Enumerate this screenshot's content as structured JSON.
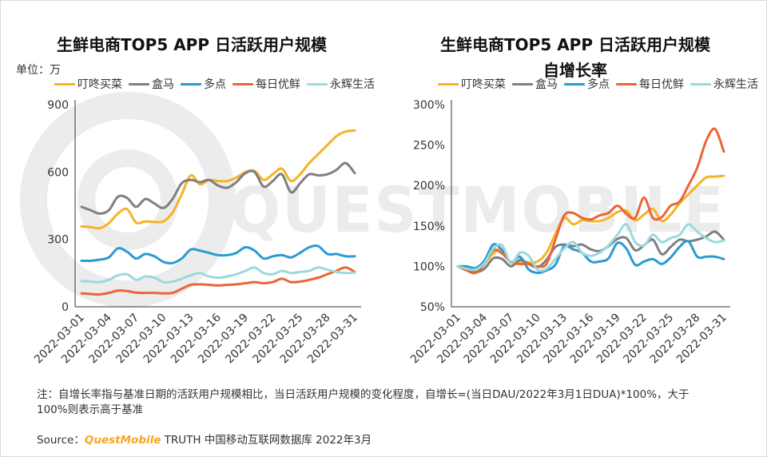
{
  "colors": {
    "dingdong": "#F5B324",
    "hema": "#7F7F7F",
    "duodian": "#2A9BD1",
    "meiri": "#EA6537",
    "yonghui": "#9AD9DC",
    "axis": "#333333",
    "text": "#333333",
    "brand": "#F5A623"
  },
  "watermark": {
    "text": "QUESTMOBILE"
  },
  "left": {
    "title": "生鲜电商TOP5 APP 日活跃用户规模",
    "unit": "单位：万"
  },
  "right": {
    "title_line1": "生鲜电商TOP5 APP 日活跃用户规模",
    "title_line2": "自增长率"
  },
  "note": "注：自增长率指与基准日期的活跃用户规模相比，当日活跃用户规模的变化程度，自增长=(当日DAU/2022年3月1日DUA)*100%，大于100%则表示高于基准",
  "source": {
    "prefix": "Source：",
    "brand": "QuestMobile",
    "suffix": " TRUTH 中国移动互联网数据库 2022年3月"
  },
  "chart_data": [
    {
      "type": "line",
      "title": "生鲜电商TOP5 APP 日活跃用户规模",
      "ylabel": "单位：万",
      "ylim": [
        0,
        900
      ],
      "yticks": [
        0,
        300,
        600,
        900
      ],
      "ytick_labels": [
        "0",
        "300",
        "600",
        "900"
      ],
      "xtick_labels": [
        "2022-03-01",
        "2022-03-04",
        "2022-03-07",
        "2022-03-10",
        "2022-03-13",
        "2022-03-16",
        "2022-03-19",
        "2022-03-22",
        "2022-03-25",
        "2022-03-28",
        "2022-03-31"
      ],
      "legend_position": "top",
      "grid": false,
      "series": [
        {
          "name": "叮咚买菜",
          "color_key": "dingdong",
          "values": [
            358,
            355,
            350,
            372,
            415,
            435,
            375,
            380,
            378,
            380,
            420,
            500,
            585,
            545,
            565,
            560,
            560,
            575,
            600,
            605,
            565,
            590,
            615,
            560,
            590,
            640,
            680,
            720,
            760,
            780,
            785
          ]
        },
        {
          "name": "盒马",
          "color_key": "hema",
          "values": [
            445,
            430,
            415,
            430,
            490,
            485,
            445,
            480,
            460,
            440,
            480,
            550,
            565,
            555,
            565,
            540,
            530,
            555,
            595,
            600,
            535,
            560,
            590,
            510,
            550,
            590,
            585,
            590,
            610,
            640,
            595
          ]
        },
        {
          "name": "多点",
          "color_key": "duodian",
          "values": [
            205,
            205,
            210,
            220,
            260,
            245,
            215,
            235,
            225,
            200,
            195,
            215,
            255,
            250,
            240,
            230,
            230,
            240,
            265,
            250,
            215,
            225,
            230,
            220,
            240,
            265,
            270,
            235,
            235,
            225,
            225
          ]
        },
        {
          "name": "每日优鲜",
          "color_key": "meiri",
          "values": [
            60,
            57,
            55,
            62,
            72,
            70,
            63,
            62,
            62,
            60,
            62,
            80,
            98,
            100,
            98,
            95,
            98,
            100,
            105,
            110,
            105,
            110,
            125,
            110,
            112,
            120,
            130,
            145,
            160,
            175,
            155
          ]
        },
        {
          "name": "永辉生活",
          "color_key": "yonghui",
          "values": [
            115,
            112,
            110,
            120,
            140,
            145,
            120,
            135,
            130,
            110,
            112,
            125,
            140,
            150,
            135,
            130,
            135,
            145,
            160,
            175,
            150,
            145,
            160,
            150,
            155,
            160,
            175,
            165,
            155,
            150,
            152
          ]
        }
      ]
    },
    {
      "type": "line",
      "title": "生鲜电商TOP5 APP 日活跃用户规模自增长率",
      "ylim": [
        50,
        300
      ],
      "yticks": [
        50,
        100,
        150,
        200,
        250,
        300
      ],
      "ytick_labels": [
        "50%",
        "100%",
        "150%",
        "200%",
        "250%",
        "300%"
      ],
      "xtick_labels": [
        "2022-03-01",
        "2022-03-04",
        "2022-03-07",
        "2022-03-10",
        "2022-03-13",
        "2022-03-16",
        "2022-03-19",
        "2022-03-22",
        "2022-03-25",
        "2022-03-28",
        "2022-03-31"
      ],
      "legend_position": "top",
      "grid": false,
      "series": [
        {
          "name": "叮咚买菜",
          "color_key": "dingdong",
          "values": [
            100,
            99,
            97,
            104,
            116,
            121,
            104,
            106,
            105,
            106,
            117,
            140,
            160,
            152,
            157,
            156,
            156,
            160,
            167,
            169,
            157,
            164,
            171,
            156,
            164,
            178,
            189,
            200,
            210,
            211,
            212
          ]
        },
        {
          "name": "盒马",
          "color_key": "hema",
          "values": [
            100,
            97,
            93,
            97,
            110,
            109,
            100,
            108,
            103,
            99,
            108,
            124,
            127,
            125,
            127,
            121,
            119,
            125,
            134,
            135,
            120,
            126,
            133,
            115,
            124,
            133,
            131,
            133,
            137,
            143,
            133
          ]
        },
        {
          "name": "多点",
          "color_key": "duodian",
          "values": [
            100,
            100,
            98,
            107,
            127,
            120,
            105,
            112,
            96,
            92,
            95,
            102,
            125,
            121,
            117,
            106,
            106,
            110,
            129,
            122,
            102,
            106,
            109,
            103,
            111,
            124,
            131,
            112,
            112,
            112,
            109
          ]
        },
        {
          "name": "每日优鲜",
          "color_key": "meiri",
          "values": [
            100,
            95,
            92,
            103,
            120,
            116,
            105,
            103,
            103,
            100,
            103,
            133,
            163,
            166,
            160,
            158,
            163,
            166,
            175,
            165,
            160,
            185,
            160,
            161,
            175,
            180,
            200,
            222,
            255,
            270,
            242
          ]
        },
        {
          "name": "永辉生活",
          "color_key": "yonghui",
          "values": [
            100,
            97,
            96,
            104,
            122,
            126,
            104,
            117,
            113,
            96,
            97,
            109,
            122,
            130,
            117,
            113,
            117,
            126,
            139,
            152,
            130,
            126,
            139,
            130,
            135,
            139,
            152,
            143,
            135,
            130,
            132
          ]
        }
      ]
    }
  ]
}
